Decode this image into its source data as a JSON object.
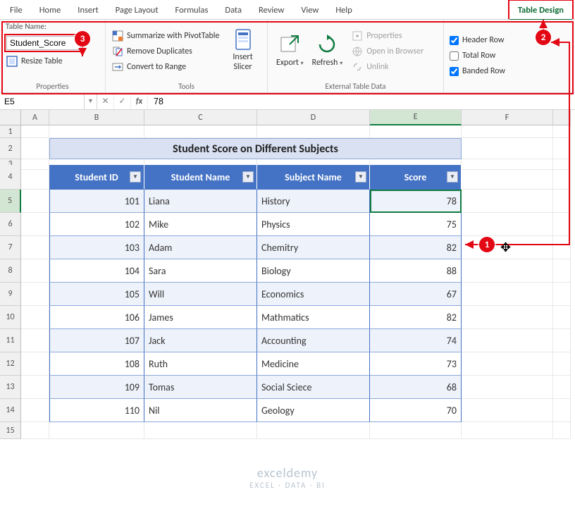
{
  "ribbon": {
    "tabs": [
      "File",
      "Home",
      "Insert",
      "Page Layout",
      "Formulas",
      "Data",
      "Review",
      "View",
      "Help",
      "Table Design"
    ],
    "active_contextual": "Table Design",
    "properties": {
      "label": "Properties",
      "table_name_label": "Table Name:",
      "table_name_value": "Student_Score",
      "resize_table": "Resize Table"
    },
    "tools": {
      "label": "Tools",
      "pivot": "Summarize with PivotTable",
      "dedup": "Remove Duplicates",
      "convert": "Convert to Range",
      "slicer": "Insert\nSlicer"
    },
    "external": {
      "label": "External Table Data",
      "export": "Export",
      "refresh": "Refresh",
      "props": "Properties",
      "browser": "Open in Browser",
      "unlink": "Unlink"
    },
    "style_opts": {
      "header_row": "Header Row",
      "total_row": "Total Row",
      "banded_row": "Banded Row",
      "header_checked": true,
      "total_checked": false,
      "banded_checked": true
    }
  },
  "formula_bar": {
    "name_box": "E5",
    "formula": "78"
  },
  "columns": [
    "",
    "A",
    "B",
    "C",
    "D",
    "E",
    "F",
    ""
  ],
  "sheet": {
    "title": "Student Score on Different Subjects",
    "headers": [
      "Student ID",
      "Student Name",
      "Subject Name",
      "Score"
    ],
    "rows": [
      {
        "n": 5,
        "id": 101,
        "name": "Liana",
        "subj": "History",
        "score": 78
      },
      {
        "n": 6,
        "id": 102,
        "name": "Mike",
        "subj": "Physics",
        "score": 75
      },
      {
        "n": 7,
        "id": 103,
        "name": "Adam",
        "subj": "Chemitry",
        "score": 82
      },
      {
        "n": 8,
        "id": 104,
        "name": "Sara",
        "subj": "Biology",
        "score": 88
      },
      {
        "n": 9,
        "id": 105,
        "name": "Will",
        "subj": "Economics",
        "score": 67
      },
      {
        "n": 10,
        "id": 106,
        "name": "James",
        "subj": "Mathmatics",
        "score": 82
      },
      {
        "n": 11,
        "id": 107,
        "name": "Jack",
        "subj": "Accounting",
        "score": 74
      },
      {
        "n": 12,
        "id": 108,
        "name": "Ruth",
        "subj": "Medicine",
        "score": 73
      },
      {
        "n": 13,
        "id": 109,
        "name": "Tomas",
        "subj": "Social Sciece",
        "score": 68
      },
      {
        "n": 14,
        "id": 110,
        "name": "Nil",
        "subj": "Geology",
        "score": 70
      }
    ]
  },
  "callouts": {
    "c1": "1",
    "c2": "2",
    "c3": "3"
  },
  "watermark": {
    "l1": "exceldemy",
    "l2": "EXCEL · DATA · BI"
  },
  "colors": {
    "accent": "#107c41",
    "callout": "#e30613",
    "tbl_header": "#4472c4",
    "title_bg": "#d9e1f2"
  }
}
